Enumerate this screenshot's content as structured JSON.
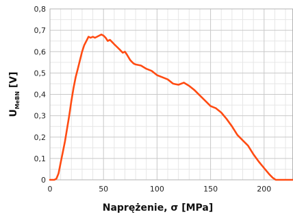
{
  "chart_data": {
    "type": "line",
    "title": "",
    "xlabel": "Naprężenie, σ [MPa]",
    "ylabel": {
      "main": "U",
      "subscript": "MeBN",
      "unit": " [V]"
    },
    "xlim": [
      0,
      227
    ],
    "ylim": [
      0,
      0.8
    ],
    "xticks": [
      0,
      50,
      100,
      150,
      200
    ],
    "xtick_labels": [
      "0",
      "50",
      "100",
      "150",
      "200"
    ],
    "yticks": [
      0,
      0.1,
      0.2,
      0.3,
      0.4,
      0.5,
      0.6,
      0.7,
      0.8
    ],
    "ytick_labels": [
      "0",
      "0,1",
      "0,2",
      "0,3",
      "0,4",
      "0,5",
      "0,6",
      "0,7",
      "0,8"
    ],
    "grid": true,
    "legend": "none",
    "series": [
      {
        "color": "#ff4b12",
        "x": [
          0,
          4,
          6,
          8,
          10,
          12,
          14,
          16,
          18,
          20,
          22,
          24,
          26,
          28,
          30,
          32,
          34,
          36,
          38,
          40,
          42,
          44,
          46,
          48,
          50,
          52,
          54,
          56,
          58,
          60,
          62,
          65,
          68,
          70,
          72,
          75,
          78,
          80,
          85,
          90,
          95,
          100,
          105,
          110,
          115,
          120,
          125,
          130,
          135,
          140,
          145,
          150,
          155,
          160,
          165,
          170,
          175,
          180,
          185,
          190,
          195,
          200,
          205,
          208,
          210,
          211,
          213,
          216,
          220,
          227
        ],
        "y": [
          0,
          0,
          0.005,
          0.03,
          0.08,
          0.13,
          0.18,
          0.24,
          0.3,
          0.37,
          0.43,
          0.48,
          0.52,
          0.56,
          0.6,
          0.63,
          0.65,
          0.67,
          0.665,
          0.67,
          0.665,
          0.67,
          0.675,
          0.68,
          0.675,
          0.665,
          0.65,
          0.655,
          0.645,
          0.635,
          0.625,
          0.61,
          0.595,
          0.6,
          0.585,
          0.56,
          0.545,
          0.54,
          0.535,
          0.52,
          0.51,
          0.49,
          0.48,
          0.47,
          0.45,
          0.445,
          0.455,
          0.44,
          0.42,
          0.395,
          0.37,
          0.345,
          0.335,
          0.315,
          0.285,
          0.25,
          0.21,
          0.185,
          0.16,
          0.12,
          0.085,
          0.055,
          0.025,
          0.01,
          0.003,
          0,
          0,
          0,
          0,
          0
        ]
      }
    ]
  }
}
